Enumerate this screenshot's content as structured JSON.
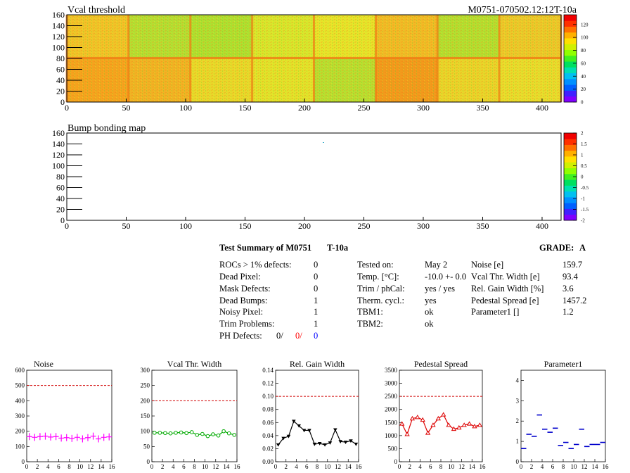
{
  "header": {
    "module_id": "M0751-070502.12:12T-10a"
  },
  "maps": [
    {
      "title": "Vcal threshold",
      "x_ticks": [
        "0",
        "50",
        "100",
        "150",
        "200",
        "250",
        "300",
        "350",
        "400"
      ],
      "y_ticks": [
        "0",
        "20",
        "40",
        "60",
        "80",
        "100",
        "120",
        "140",
        "160"
      ],
      "color_ticks": [
        "0",
        "20",
        "40",
        "60",
        "80",
        "100",
        "120"
      ],
      "color_range": [
        0,
        135
      ]
    },
    {
      "title": "Bump bonding map",
      "x_ticks": [
        "0",
        "50",
        "100",
        "150",
        "200",
        "250",
        "300",
        "350",
        "400"
      ],
      "y_ticks": [
        "0",
        "20",
        "40",
        "60",
        "80",
        "100",
        "120",
        "140",
        "160"
      ],
      "color_ticks": [
        "-2",
        "-1.5",
        "-1",
        "-0.5",
        "0",
        "0.5",
        "1",
        "1.5",
        "2"
      ],
      "color_range": [
        -2,
        2
      ]
    }
  ],
  "summary": {
    "title": "Test Summary of M0751",
    "subtitle": "T-10a",
    "grade_label": "GRADE:",
    "grade_value": "A",
    "defects": [
      {
        "label": "ROCs > 1% defects:",
        "value": "0"
      },
      {
        "label": "Dead Pixel:",
        "value": "0"
      },
      {
        "label": "Mask Defects:",
        "value": "0"
      },
      {
        "label": "Dead Bumps:",
        "value": "1"
      },
      {
        "label": "Noisy Pixel:",
        "value": "1"
      },
      {
        "label": "Trim Problems:",
        "value": "1"
      }
    ],
    "ph_defects": {
      "label": "PH Defects:",
      "v1": "0/",
      "v2": "0/",
      "v3": "0",
      "c1": "#000000",
      "c2": "#ff0000",
      "c3": "#0000ff"
    },
    "conditions": [
      {
        "label": "Tested on:",
        "value": "May 2"
      },
      {
        "label": "Temp. [°C]:",
        "value": "-10.0 +- 0.0"
      },
      {
        "label": "Trim / phCal:",
        "value": "yes / yes"
      },
      {
        "label": "Therm. cycl.:",
        "value": "yes"
      },
      {
        "label": "TBM1:",
        "value": "ok"
      },
      {
        "label": "TBM2:",
        "value": "ok"
      }
    ],
    "results": [
      {
        "label": "Noise [e]",
        "value": "159.7"
      },
      {
        "label": "Vcal Thr. Width [e]",
        "value": "93.4"
      },
      {
        "label": "Rel. Gain Width [%]",
        "value": "3.6"
      },
      {
        "label": "Pedestal Spread [e]",
        "value": "1457.2"
      },
      {
        "label": "Parameter1 []",
        "value": "1.2"
      }
    ]
  },
  "chart_data": [
    {
      "type": "scatter",
      "title": "Noise",
      "xlim": [
        0,
        16
      ],
      "ylim": [
        0,
        600
      ],
      "limit_line": 500,
      "x_ticks": [
        0,
        2,
        4,
        6,
        8,
        10,
        12,
        14,
        16
      ],
      "y_ticks": [
        0,
        100,
        200,
        300,
        400,
        500,
        600
      ],
      "y_decimals": 0,
      "color": "#ff00ff",
      "marker": "plus",
      "x": [
        0.5,
        1.5,
        2.5,
        3.5,
        4.5,
        5.5,
        6.5,
        7.5,
        8.5,
        9.5,
        10.5,
        11.5,
        12.5,
        13.5,
        14.5,
        15.5
      ],
      "values": [
        165,
        160,
        165,
        168,
        162,
        165,
        155,
        158,
        153,
        160,
        150,
        158,
        168,
        150,
        160,
        163
      ]
    },
    {
      "type": "line",
      "title": "Vcal Thr. Width",
      "xlim": [
        0,
        16
      ],
      "ylim": [
        0,
        300
      ],
      "limit_line": 200,
      "x_ticks": [
        0,
        2,
        4,
        6,
        8,
        10,
        12,
        14,
        16
      ],
      "y_ticks": [
        0,
        50,
        100,
        150,
        200,
        250,
        300
      ],
      "y_decimals": 0,
      "color": "#00aa00",
      "marker": "circle",
      "x": [
        0.5,
        1.5,
        2.5,
        3.5,
        4.5,
        5.5,
        6.5,
        7.5,
        8.5,
        9.5,
        10.5,
        11.5,
        12.5,
        13.5,
        14.5,
        15.5
      ],
      "values": [
        95,
        95,
        94,
        93,
        95,
        96,
        94,
        97,
        88,
        91,
        84,
        90,
        86,
        100,
        93,
        88
      ]
    },
    {
      "type": "line",
      "title": "Rel. Gain Width",
      "xlim": [
        0,
        16
      ],
      "ylim": [
        0,
        0.14
      ],
      "limit_line": 0.1,
      "x_ticks": [
        0,
        2,
        4,
        6,
        8,
        10,
        12,
        14,
        16
      ],
      "y_ticks": [
        0,
        0.02,
        0.04,
        0.06,
        0.08,
        0.1,
        0.12,
        0.14
      ],
      "y_decimals": 2,
      "color": "#000000",
      "marker": "triangle-down",
      "x": [
        0.5,
        1.5,
        2.5,
        3.5,
        4.5,
        5.5,
        6.5,
        7.5,
        8.5,
        9.5,
        10.5,
        11.5,
        12.5,
        13.5,
        14.5,
        15.5
      ],
      "values": [
        0.026,
        0.036,
        0.039,
        0.062,
        0.055,
        0.048,
        0.048,
        0.027,
        0.028,
        0.026,
        0.029,
        0.049,
        0.031,
        0.03,
        0.032,
        0.027
      ]
    },
    {
      "type": "line",
      "title": "Pedestal Spread",
      "xlim": [
        0,
        16
      ],
      "ylim": [
        0,
        3500
      ],
      "limit_line": 2500,
      "x_ticks": [
        0,
        2,
        4,
        6,
        8,
        10,
        12,
        14,
        16
      ],
      "y_ticks": [
        0,
        500,
        1000,
        1500,
        2000,
        2500,
        3000,
        3500
      ],
      "y_decimals": 0,
      "color": "#dd0000",
      "marker": "triangle-up",
      "x": [
        0.5,
        1.5,
        2.5,
        3.5,
        4.5,
        5.5,
        6.5,
        7.5,
        8.5,
        9.5,
        10.5,
        11.5,
        12.5,
        13.5,
        14.5,
        15.5
      ],
      "values": [
        1450,
        1050,
        1650,
        1700,
        1600,
        1100,
        1400,
        1650,
        1800,
        1400,
        1250,
        1300,
        1400,
        1450,
        1350,
        1400
      ]
    },
    {
      "type": "scatter",
      "title": "Parameter1",
      "xlim": [
        0,
        16
      ],
      "ylim": [
        0,
        4.5
      ],
      "limit_line": null,
      "x_ticks": [
        0,
        2,
        4,
        6,
        8,
        10,
        12,
        14,
        16
      ],
      "y_ticks": [
        0,
        1,
        2,
        3,
        4
      ],
      "y_decimals": 0,
      "color": "#0000cc",
      "marker": "hbar",
      "x": [
        0.5,
        1.5,
        2.5,
        3.5,
        4.5,
        5.5,
        6.5,
        7.5,
        8.5,
        9.5,
        10.5,
        11.5,
        12.5,
        13.5,
        14.5,
        15.5
      ],
      "values": [
        0.65,
        1.35,
        1.25,
        2.3,
        1.6,
        1.45,
        1.65,
        0.8,
        0.95,
        0.65,
        0.85,
        1.6,
        0.75,
        0.85,
        0.85,
        0.95
      ]
    }
  ]
}
